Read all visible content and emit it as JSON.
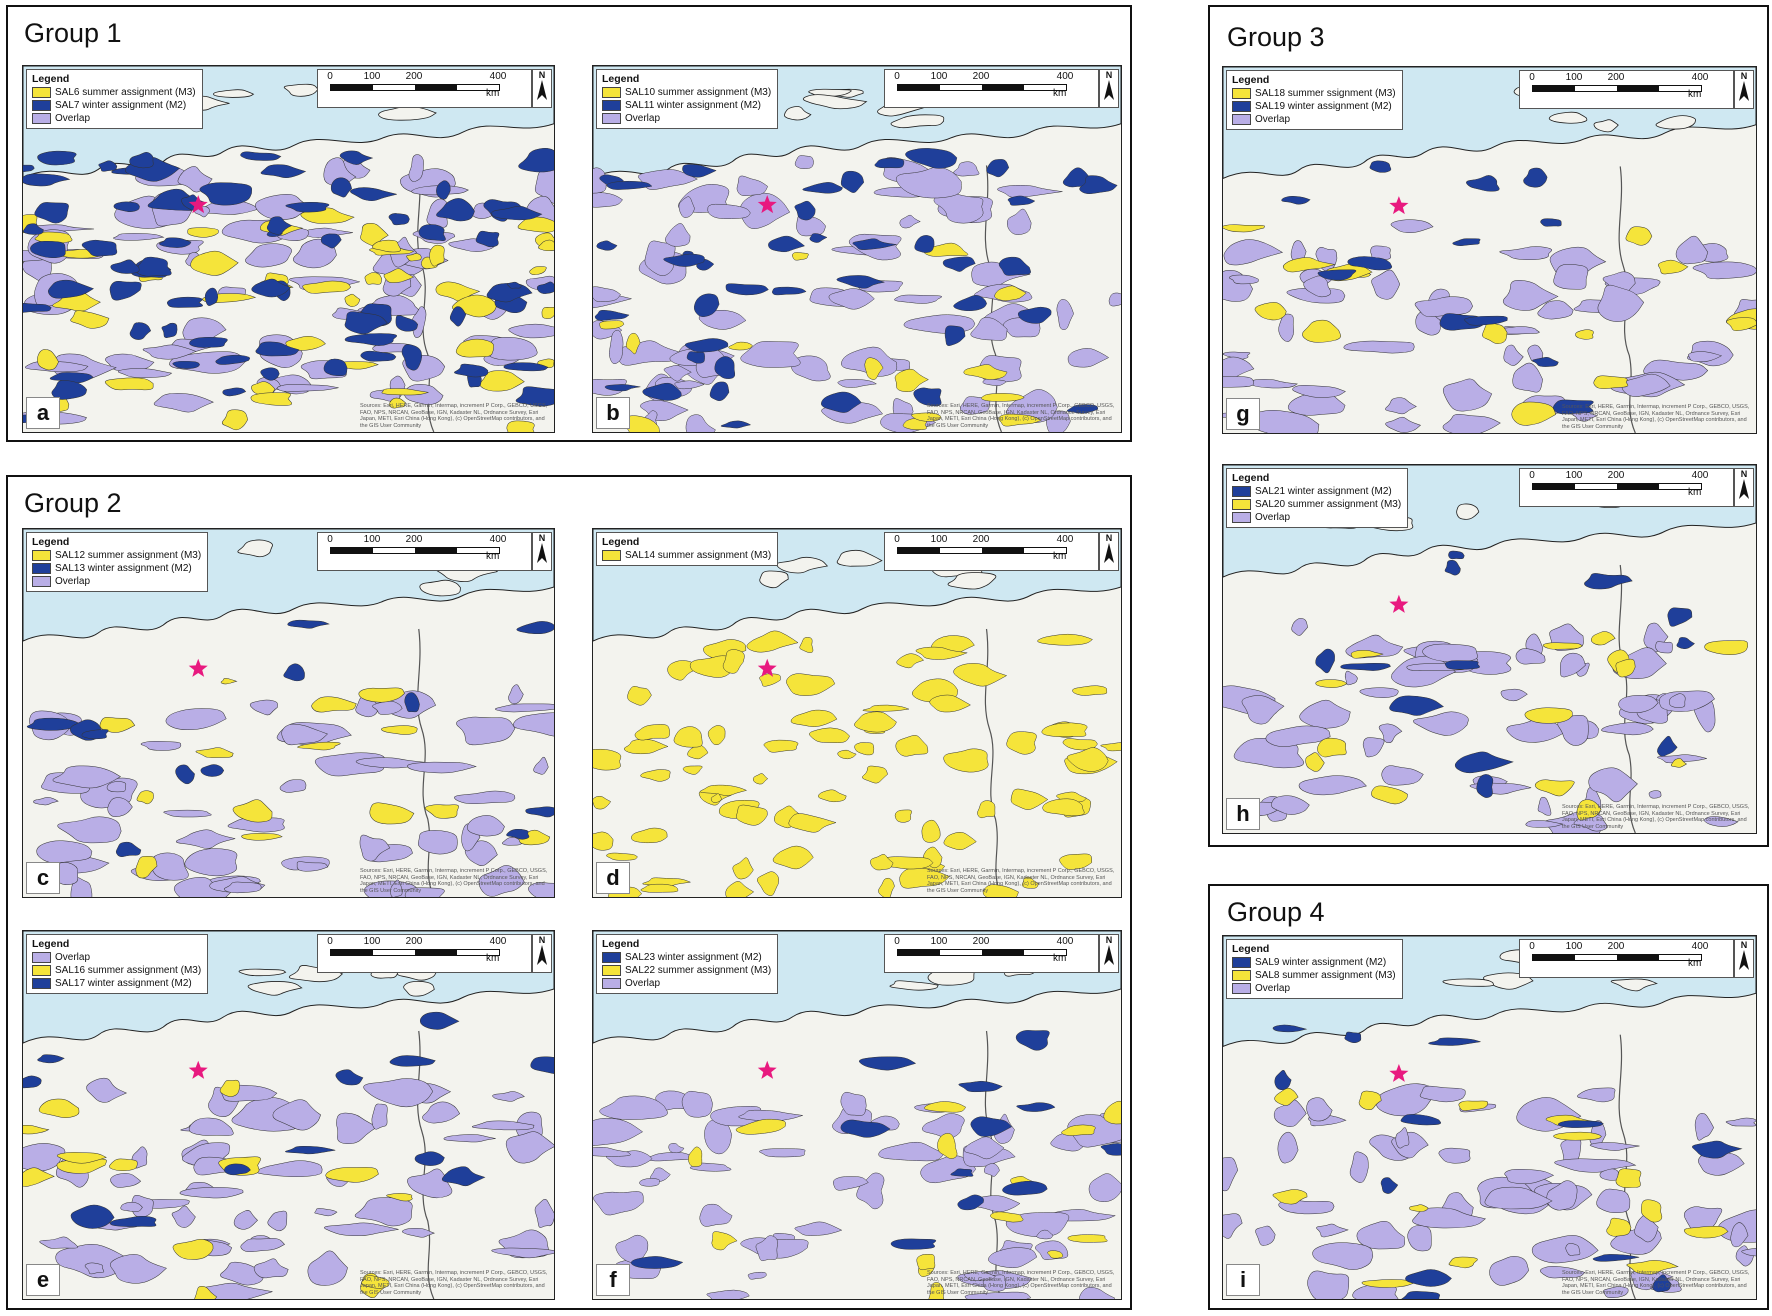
{
  "figure": {
    "groups": [
      {
        "id": "g1",
        "title": "Group 1"
      },
      {
        "id": "g2",
        "title": "Group 2"
      },
      {
        "id": "g3",
        "title": "Group 3"
      },
      {
        "id": "g4",
        "title": "Group 4"
      }
    ],
    "legend_title": "Legend",
    "scale": {
      "labels": [
        "0",
        "100",
        "200",
        "400"
      ],
      "unit": "km"
    },
    "north_label": "N",
    "attribution": "Sources: Esri, HERE, Garmin, Intermap, increment P Corp., GEBCO, USGS, FAO, NPS, NRCAN, GeoBase, IGN, Kadaster NL, Ordnance Survey, Esri Japan, METI, Esri China (Hong Kong), (c) OpenStreetMap contributors, and the GIS User Community",
    "colors": {
      "summer": "#f5e43a",
      "winter": "#1f3f9a",
      "overlap": "#b9aee6",
      "sea": "#cfe8f2",
      "land": "#f3f3ee",
      "marker": "#e8197f"
    },
    "marker_icon": "star-icon",
    "panels": [
      {
        "letter": "a",
        "legend": [
          {
            "label": "SAL6 summer assignment (M3)",
            "kind": "summer"
          },
          {
            "label": "SAL7 winter assignment (M2)",
            "kind": "winter"
          },
          {
            "label": "Overlap",
            "kind": "overlap"
          }
        ]
      },
      {
        "letter": "b",
        "legend": [
          {
            "label": "SAL10 summer assignment (M3)",
            "kind": "summer"
          },
          {
            "label": "SAL11 winter assignment (M2)",
            "kind": "winter"
          },
          {
            "label": "Overlap",
            "kind": "overlap"
          }
        ]
      },
      {
        "letter": "c",
        "legend": [
          {
            "label": "SAL12 summer assignment (M3)",
            "kind": "summer"
          },
          {
            "label": "SAL13 winter assignment (M2)",
            "kind": "winter"
          },
          {
            "label": "Overlap",
            "kind": "overlap"
          }
        ]
      },
      {
        "letter": "d",
        "legend": [
          {
            "label": "SAL14 summer assignment (M3)",
            "kind": "summer"
          }
        ]
      },
      {
        "letter": "e",
        "legend": [
          {
            "label": "Overlap",
            "kind": "overlap"
          },
          {
            "label": "SAL16 summer assignment (M3)",
            "kind": "summer"
          },
          {
            "label": "SAL17 winter assignment (M2)",
            "kind": "winter"
          }
        ]
      },
      {
        "letter": "f",
        "legend": [
          {
            "label": "SAL23 winter assignment (M2)",
            "kind": "winter"
          },
          {
            "label": "SAL22 summer assignment (M3)",
            "kind": "summer"
          },
          {
            "label": "Overlap",
            "kind": "overlap"
          }
        ]
      },
      {
        "letter": "g",
        "legend": [
          {
            "label": "SAL18 summer ssignment (M3)",
            "kind": "summer"
          },
          {
            "label": "SAL19 winter assignment (M2)",
            "kind": "winter"
          },
          {
            "label": "Overlap",
            "kind": "overlap"
          }
        ]
      },
      {
        "letter": "h",
        "legend": [
          {
            "label": "SAL21 winter assignment (M2)",
            "kind": "winter"
          },
          {
            "label": "SAL20 summer assignment (M3)",
            "kind": "summer"
          },
          {
            "label": "Overlap",
            "kind": "overlap"
          }
        ]
      },
      {
        "letter": "i",
        "legend": [
          {
            "label": "SAL9 winter assignment (M2)",
            "kind": "winter"
          },
          {
            "label": "SAL8 summer assignment (M3)",
            "kind": "summer"
          },
          {
            "label": "Overlap",
            "kind": "overlap"
          }
        ]
      }
    ]
  }
}
